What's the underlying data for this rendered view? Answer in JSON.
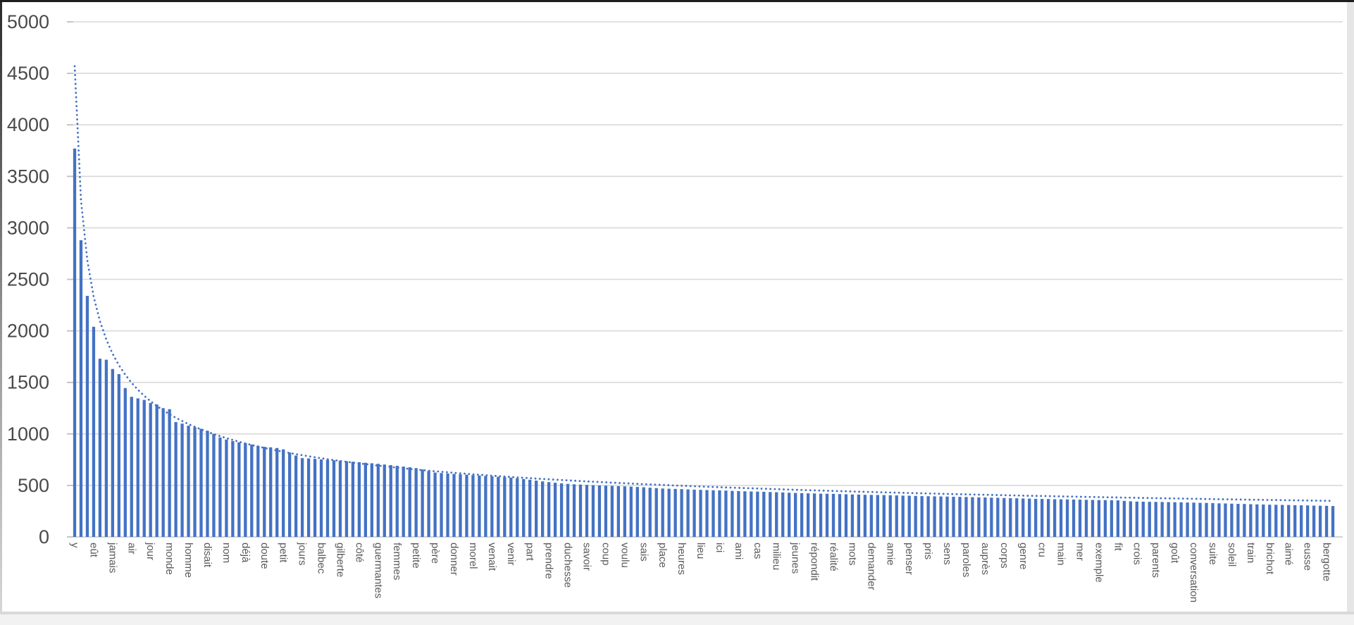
{
  "chart_data": {
    "type": "bar",
    "title": "",
    "xlabel": "",
    "ylabel": "",
    "ylim": [
      0,
      5000
    ],
    "grid": true,
    "legend": null,
    "yticks": [
      0,
      500,
      1000,
      1500,
      2000,
      2500,
      3000,
      3500,
      4000,
      4500,
      5000
    ],
    "label_stride": 3,
    "categories": [
      "y",
      "eût",
      "jamais",
      "air",
      "jour",
      "monde",
      "homme",
      "disait",
      "nom",
      "déjà",
      "doute",
      "petit",
      "jours",
      "balbec",
      "gilberte",
      "côté",
      "guermantes",
      "femmes",
      "petite",
      "père",
      "donner",
      "morel",
      "venait",
      "venir",
      "part",
      "prendre",
      "duchesse",
      "savoir",
      "coup",
      "voulu",
      "sais",
      "place",
      "heures",
      "lieu",
      "ici",
      "ami",
      "cas",
      "milieu",
      "jeunes",
      "répondit",
      "réalité",
      "mots",
      "demander",
      "amie",
      "penser",
      "pris",
      "sens",
      "paroles",
      "auprès",
      "corps",
      "genre",
      "cru",
      "main",
      "mer",
      "exemple",
      "fit",
      "crois",
      "parents",
      "goût",
      "conversation",
      "suite",
      "soleil",
      "train",
      "brichot",
      "aimé",
      "eusse",
      "bergotte"
    ],
    "values": [
      3770,
      2880,
      2340,
      2040,
      1730,
      1720,
      1630,
      1580,
      1445,
      1360,
      1345,
      1330,
      1300,
      1285,
      1250,
      1240,
      1115,
      1100,
      1080,
      1065,
      1050,
      1030,
      1000,
      965,
      945,
      930,
      918,
      910,
      897,
      884,
      875,
      870,
      863,
      850,
      820,
      790,
      765,
      762,
      758,
      752,
      748,
      744,
      740,
      735,
      730,
      725,
      720,
      715,
      710,
      703,
      697,
      690,
      683,
      676,
      668,
      655,
      640,
      625,
      620,
      616,
      612,
      608,
      604,
      600,
      596,
      592,
      588,
      584,
      580,
      576,
      569,
      562,
      555,
      547,
      539,
      532,
      526,
      520,
      515,
      511,
      508,
      505,
      502,
      500,
      498,
      495,
      493,
      491,
      488,
      485,
      482,
      478,
      474,
      470,
      468,
      466,
      464,
      461,
      459,
      457,
      455,
      453,
      452,
      450,
      447,
      445,
      443,
      441,
      440,
      438,
      436,
      434,
      432,
      429,
      427,
      425,
      423,
      422,
      420,
      419,
      418,
      416,
      414,
      412,
      411,
      409,
      408,
      407,
      406,
      405,
      403,
      401,
      400,
      398,
      396,
      395,
      394,
      393,
      392,
      390,
      389,
      388,
      386,
      384,
      383,
      381,
      380,
      378,
      376,
      375,
      373,
      372,
      370,
      369,
      368,
      366,
      365,
      364,
      363,
      362,
      360,
      359,
      358,
      357,
      356,
      355,
      350,
      346,
      343,
      342,
      341,
      340,
      339,
      338,
      337,
      336,
      334,
      333,
      331,
      330,
      328,
      326,
      325,
      323,
      321,
      320,
      318,
      316,
      315,
      313,
      312,
      311,
      310,
      308,
      307,
      306,
      304,
      303,
      302,
      300
    ],
    "trendline": {
      "kind": "power",
      "start_value": 4570,
      "exponent": -0.485,
      "style": "dotted"
    },
    "colors": {
      "bar": "#4472C4",
      "trend": "#4472C4",
      "gridline": "#D9D9D9",
      "axis_line": "#C6C6C6",
      "tick": "#BFBFBF",
      "ytick_text": "#4a4a4a",
      "xlabel_text": "#595959",
      "background": "#FFFFFF"
    }
  }
}
